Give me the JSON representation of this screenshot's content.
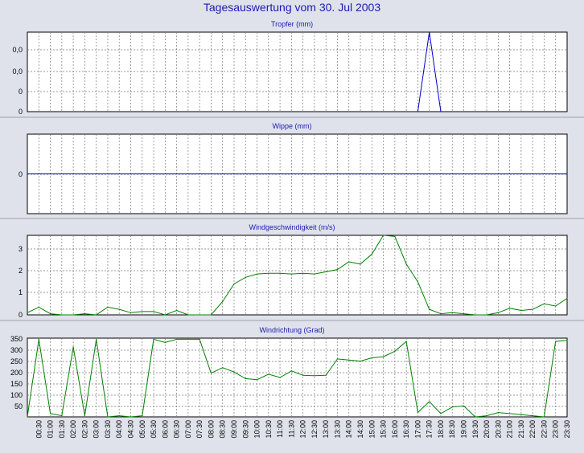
{
  "page_title": "Tagesauswertung vom 30. Jul 2003",
  "time_labels": [
    "00:30",
    "01:00",
    "01:30",
    "02:00",
    "02:30",
    "03:00",
    "03:30",
    "04:00",
    "04:30",
    "05:00",
    "05:30",
    "06:00",
    "06:30",
    "07:00",
    "07:30",
    "08:00",
    "08:30",
    "09:00",
    "09:30",
    "10:00",
    "10:30",
    "11:00",
    "11:30",
    "12:00",
    "12:30",
    "13:00",
    "13:30",
    "14:00",
    "14:30",
    "15:00",
    "15:30",
    "16:00",
    "16:30",
    "17:00",
    "17:30",
    "18:00",
    "18:30",
    "19:00",
    "19:30",
    "20:00",
    "20:30",
    "21:00",
    "21:30",
    "22:00",
    "22:30",
    "23:00",
    "23:30"
  ],
  "colors": {
    "tropfer": "#0000cc",
    "wippe": "#0000cc",
    "wind": "#008000",
    "grid": "#7a7a7a",
    "background": "#dfe2ea"
  },
  "chart_data": [
    {
      "type": "line",
      "title": "Tropfer (mm)",
      "ytick_labels": [
        "0,0",
        "0,0",
        "0",
        "0"
      ],
      "ylim": [
        0,
        1
      ],
      "x": [
        0,
        0.5,
        1,
        1.5,
        2,
        2.5,
        3,
        3.5,
        4,
        4.5,
        5,
        5.5,
        6,
        6.5,
        7,
        7.5,
        8,
        8.5,
        9,
        9.5,
        10,
        10.5,
        11,
        11.5,
        12,
        12.5,
        13,
        13.5,
        14,
        14.5,
        15,
        15.5,
        16,
        16.5,
        17,
        17.5,
        18,
        18.5,
        19,
        19.5,
        20,
        20.5,
        21,
        21.5,
        22,
        22.5,
        23,
        23.5
      ],
      "values": [
        0,
        0,
        0,
        0,
        0,
        0,
        0,
        0,
        0,
        0,
        0,
        0,
        0,
        0,
        0,
        0,
        0,
        0,
        0,
        0,
        0,
        0,
        0,
        0,
        0,
        0,
        0,
        0,
        0,
        0,
        0,
        0,
        0,
        0,
        0,
        1,
        0,
        0,
        0,
        0,
        0,
        0,
        0,
        0,
        0,
        0,
        0,
        0
      ],
      "visible_range": [
        17,
        18
      ],
      "grid": true
    },
    {
      "type": "line",
      "title": "Wippe (mm)",
      "ytick_labels": [
        "0"
      ],
      "ylim": [
        -1,
        1
      ],
      "x": [
        0,
        23.5
      ],
      "values": [
        0,
        0
      ],
      "grid": true
    },
    {
      "type": "line",
      "title": "Windgeschwindigkeit (m/s)",
      "ytick_labels": [
        "0",
        "1",
        "2",
        "3"
      ],
      "ylim": [
        0,
        3.6
      ],
      "x": [
        0,
        0.5,
        1,
        1.5,
        2,
        2.5,
        3,
        3.5,
        4,
        4.5,
        5,
        5.5,
        6,
        6.5,
        7,
        7.5,
        8,
        8.5,
        9,
        9.5,
        10,
        10.5,
        11,
        11.5,
        12,
        12.5,
        13,
        13.5,
        14,
        14.5,
        15,
        15.5,
        16,
        16.5,
        17,
        17.5,
        18,
        18.5,
        19,
        19.5,
        20,
        20.5,
        21,
        21.5,
        22,
        22.5,
        23,
        23.5
      ],
      "values": [
        0.1,
        0.35,
        0.05,
        0,
        0,
        0.05,
        0,
        0.35,
        0.25,
        0.1,
        0.15,
        0.15,
        0,
        0.2,
        0,
        0,
        0,
        0.6,
        1.4,
        1.7,
        1.85,
        1.88,
        1.88,
        1.85,
        1.88,
        1.85,
        1.95,
        2.05,
        2.4,
        2.3,
        2.75,
        3.6,
        3.55,
        2.3,
        1.5,
        0.25,
        0.05,
        0.1,
        0.05,
        0,
        0,
        0.1,
        0.3,
        0.2,
        0.25,
        0.5,
        0.4,
        0.75
      ],
      "grid": true
    },
    {
      "type": "line",
      "title": "Windrichtung (Grad)",
      "ytick_labels": [
        "50",
        "100",
        "150",
        "200",
        "250",
        "300",
        "350"
      ],
      "ylim": [
        0,
        360
      ],
      "x": [
        0,
        0.5,
        1,
        1.5,
        2,
        2.5,
        3,
        3.5,
        4,
        4.5,
        5,
        5.5,
        6,
        6.5,
        7,
        7.5,
        8,
        8.5,
        9,
        9.5,
        10,
        10.5,
        11,
        11.5,
        12,
        12.5,
        13,
        13.5,
        14,
        14.5,
        15,
        15.5,
        16,
        16.5,
        17,
        17.5,
        18,
        18.5,
        19,
        19.5,
        20,
        20.5,
        21,
        21.5,
        22,
        22.5,
        23,
        23.5
      ],
      "values": [
        0,
        355,
        15,
        5,
        320,
        5,
        355,
        0,
        5,
        0,
        5,
        355,
        340,
        355,
        355,
        355,
        200,
        225,
        205,
        175,
        170,
        195,
        180,
        210,
        190,
        188,
        190,
        265,
        260,
        255,
        270,
        275,
        300,
        345,
        20,
        70,
        15,
        45,
        50,
        0,
        5,
        20,
        15,
        10,
        5,
        0,
        345,
        350
      ],
      "grid": true
    }
  ]
}
